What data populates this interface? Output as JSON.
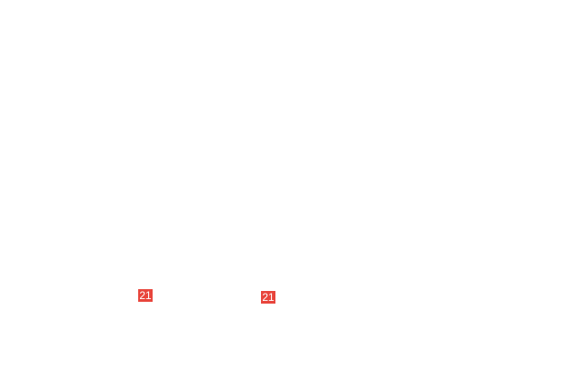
{
  "colors": {
    "badge": "#e8453c"
  },
  "badges": [
    {
      "label": "21"
    },
    {
      "label": "21"
    }
  ]
}
